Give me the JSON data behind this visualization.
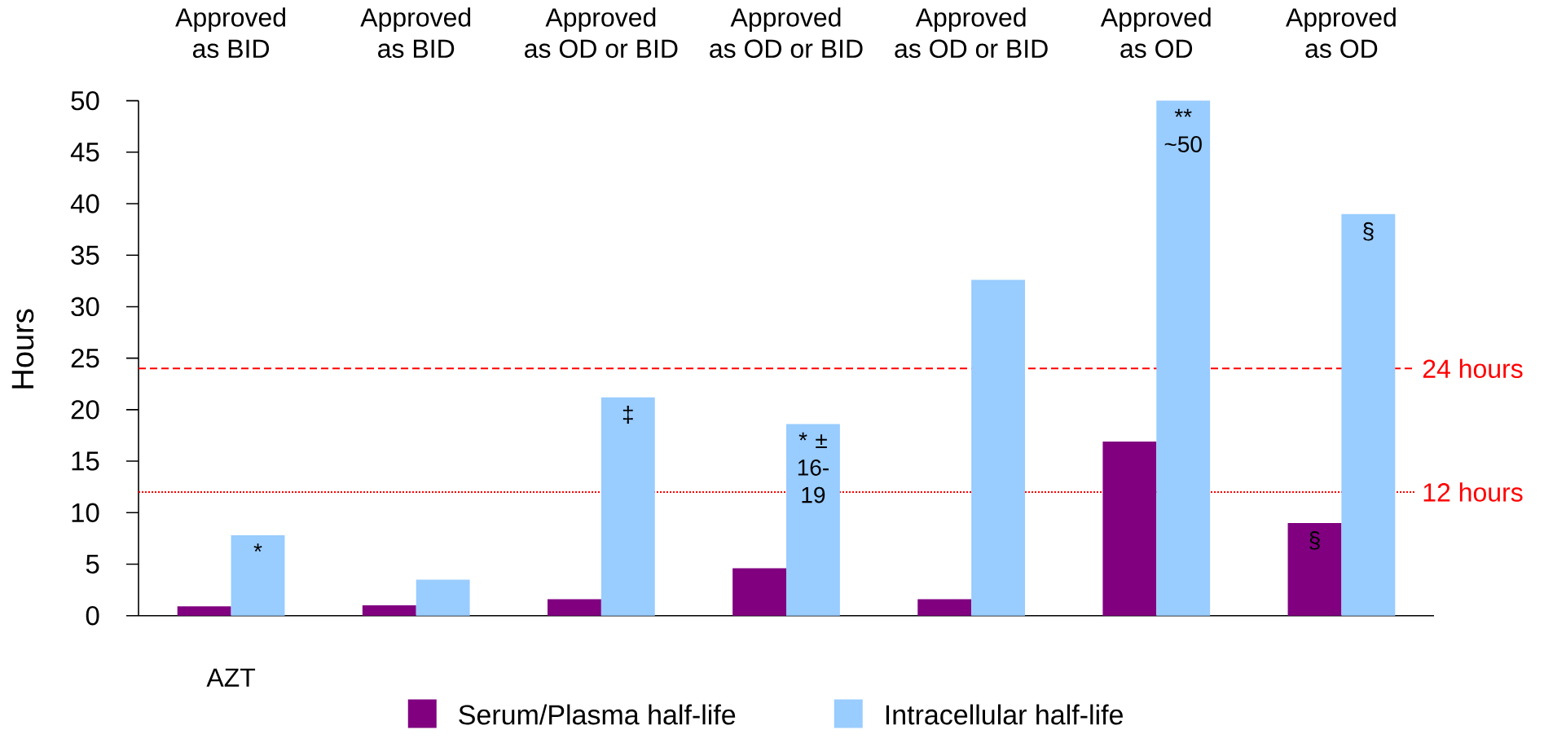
{
  "chart_data": {
    "type": "bar",
    "ylabel": "Hours",
    "categories": [
      "AZT",
      null,
      null,
      null,
      null,
      null,
      null
    ],
    "series": [
      {
        "name": "Serum/Plasma half-life",
        "color": "#800080",
        "values": [
          0.9,
          1.0,
          1.6,
          4.6,
          1.6,
          16.9,
          9.0
        ],
        "value_labels": [
          null,
          null,
          null,
          null,
          null,
          null,
          "§"
        ]
      },
      {
        "name": "Intracellular half-life",
        "color": "#99ccff",
        "values": [
          7.8,
          3.5,
          21.2,
          18.6,
          32.6,
          50,
          39.0
        ],
        "value_labels": [
          "*",
          null,
          "‡",
          "* ± 16-19",
          null,
          "** ~50",
          "§"
        ]
      }
    ],
    "ylim": [
      0,
      50
    ],
    "yticks": [
      0,
      5,
      10,
      15,
      20,
      25,
      30,
      35,
      40,
      45,
      50
    ],
    "ref_lines": [
      {
        "axis": "y",
        "value": 24,
        "label": "24 hours",
        "color": "#ff0000",
        "line_style": "dashed"
      },
      {
        "axis": "y",
        "value": 12,
        "label": "12 hours",
        "color": "#ff0000",
        "line_style": "dotted"
      }
    ],
    "annotations": [
      "Approved as BID",
      "Approved as BID",
      "Approved as OD or BID",
      "Approved as OD or BID",
      "Approved as OD or BID",
      "Approved as OD",
      "Approved as OD"
    ],
    "legend": "bottom"
  }
}
